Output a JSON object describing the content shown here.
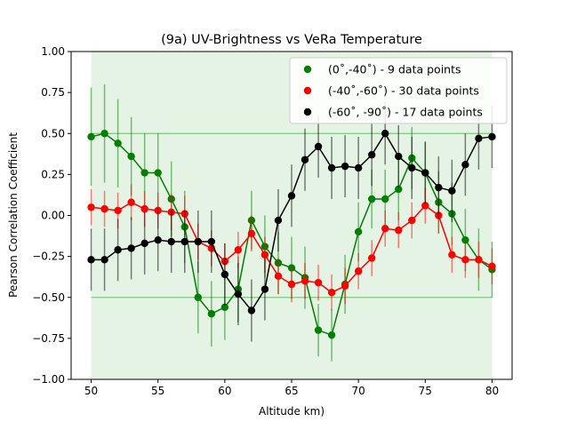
{
  "chart_data": {
    "type": "scatter",
    "title": "(9a) UV-Brightness vs VeRa Temperature",
    "xlabel": "Altitude km)",
    "ylabel": "Pearson Correlation Coefficient",
    "xlim": [
      48.5,
      81.5
    ],
    "ylim": [
      -1.0,
      1.0
    ],
    "xticks": [
      50,
      55,
      60,
      65,
      70,
      75,
      80
    ],
    "yticks": [
      -1.0,
      -0.75,
      -0.5,
      -0.25,
      0.0,
      0.25,
      0.5,
      0.75,
      1.0
    ],
    "grid": false,
    "legend_placement": "top-right",
    "shaded_region": {
      "x": [
        50,
        80
      ],
      "y": [
        -1.0,
        1.0
      ],
      "color": "#2ca02c"
    },
    "threshold_lines": [
      0.5,
      -0.5
    ],
    "x": [
      50,
      51,
      52,
      53,
      54,
      55,
      56,
      57,
      58,
      59,
      60,
      61,
      62,
      63,
      64,
      65,
      66,
      67,
      68,
      69,
      70,
      71,
      72,
      73,
      74,
      75,
      76,
      77,
      78,
      79,
      80
    ],
    "series": [
      {
        "name": "(0˚,-40˚) - 9 data points",
        "color": "#008000",
        "values": [
          0.48,
          0.5,
          0.44,
          0.36,
          0.26,
          0.26,
          0.1,
          -0.07,
          -0.5,
          -0.6,
          -0.56,
          -0.45,
          -0.03,
          -0.19,
          -0.29,
          -0.32,
          -0.38,
          -0.7,
          -0.73,
          -0.42,
          -0.1,
          0.1,
          0.1,
          0.16,
          0.35,
          0.26,
          0.08,
          0.01,
          -0.15,
          -0.27,
          -0.33
        ],
        "errors": [
          0.3,
          0.3,
          0.27,
          0.24,
          0.24,
          0.24,
          0.23,
          0.22,
          0.22,
          0.2,
          0.2,
          0.2,
          0.18,
          0.19,
          0.19,
          0.19,
          0.19,
          0.16,
          0.16,
          0.18,
          0.18,
          0.18,
          0.18,
          0.19,
          0.19,
          0.19,
          0.19,
          0.19,
          0.19,
          0.19,
          0.17
        ]
      },
      {
        "name": "(-40˚,-60˚) - 30 data points",
        "color": "#ff0000",
        "values": [
          0.05,
          0.04,
          0.03,
          0.08,
          0.04,
          0.03,
          0.02,
          0.01,
          -0.16,
          -0.2,
          -0.28,
          -0.21,
          -0.11,
          -0.24,
          -0.37,
          -0.42,
          -0.4,
          -0.41,
          -0.47,
          -0.43,
          -0.34,
          -0.26,
          -0.08,
          -0.09,
          -0.03,
          0.06,
          0.0,
          -0.24,
          -0.27,
          -0.27,
          -0.31
        ],
        "errors": [
          0.11,
          0.11,
          0.11,
          0.11,
          0.11,
          0.11,
          0.11,
          0.11,
          0.11,
          0.11,
          0.11,
          0.11,
          0.11,
          0.11,
          0.11,
          0.11,
          0.11,
          0.11,
          0.11,
          0.11,
          0.11,
          0.11,
          0.11,
          0.11,
          0.11,
          0.11,
          0.11,
          0.11,
          0.11,
          0.11,
          0.11
        ]
      },
      {
        "name": "(-60˚, -90˚) - 17 data points",
        "color": "#000000",
        "values": [
          -0.27,
          -0.27,
          -0.21,
          -0.2,
          -0.17,
          -0.15,
          -0.16,
          -0.16,
          -0.16,
          -0.16,
          -0.36,
          -0.48,
          -0.58,
          -0.45,
          -0.03,
          0.12,
          0.34,
          0.42,
          0.29,
          0.3,
          0.29,
          0.37,
          0.5,
          0.36,
          0.29,
          0.26,
          0.17,
          0.15,
          0.31,
          0.47,
          0.48
        ],
        "errors": [
          0.19,
          0.19,
          0.19,
          0.19,
          0.19,
          0.19,
          0.19,
          0.19,
          0.19,
          0.19,
          0.19,
          0.19,
          0.19,
          0.19,
          0.19,
          0.19,
          0.19,
          0.19,
          0.19,
          0.19,
          0.19,
          0.19,
          0.19,
          0.19,
          0.19,
          0.19,
          0.19,
          0.19,
          0.19,
          0.19,
          0.19
        ]
      }
    ]
  }
}
